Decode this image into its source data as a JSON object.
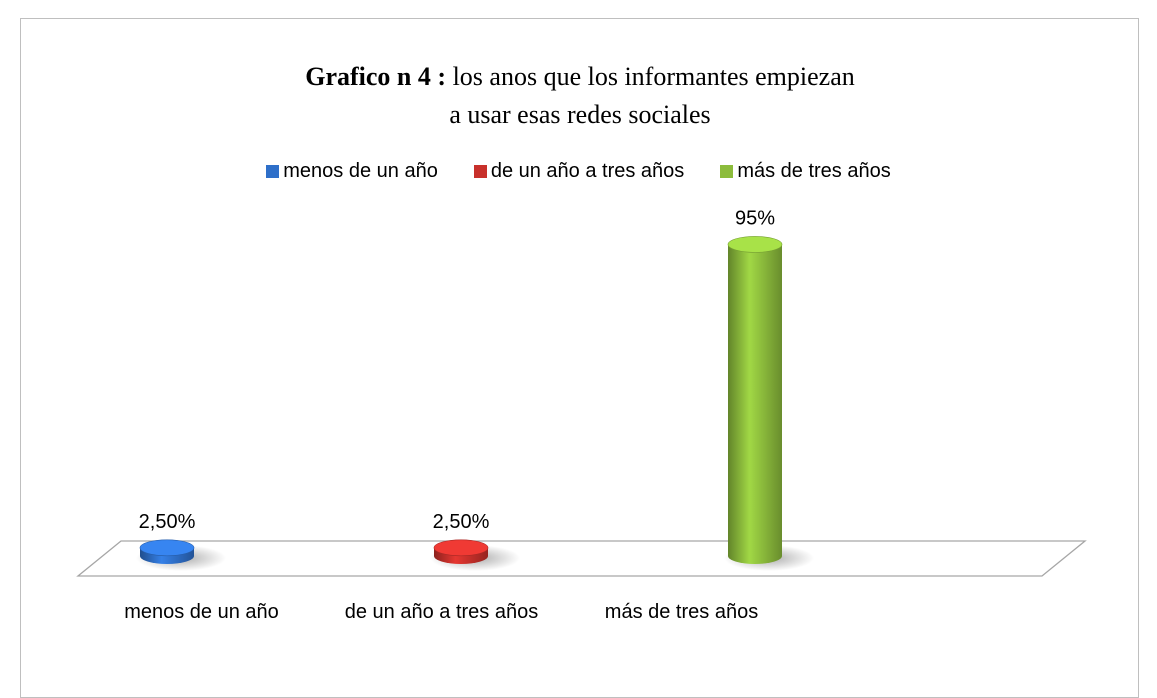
{
  "chart_data": {
    "type": "cylinder-bar",
    "title_prefix": "Grafico n 4 :",
    "title": "los anos que los informantes empiezan a usar esas redes sociales",
    "categories": [
      "menos de un año",
      "de un año a tres años",
      "más de tres años"
    ],
    "series": [
      {
        "name": "menos de un año",
        "color": "#2e6fc9",
        "values": [
          2.5,
          null,
          null
        ],
        "value_labels": [
          "2,50%",
          null,
          null
        ]
      },
      {
        "name": "de un año a tres años",
        "color": "#c8302b",
        "values": [
          null,
          2.5,
          null
        ],
        "value_labels": [
          null,
          "2,50%",
          null
        ]
      },
      {
        "name": "más de tres años",
        "color": "#8cbc3c",
        "values": [
          null,
          null,
          95
        ],
        "value_labels": [
          null,
          null,
          "95%"
        ]
      }
    ],
    "legend": "top"
  }
}
